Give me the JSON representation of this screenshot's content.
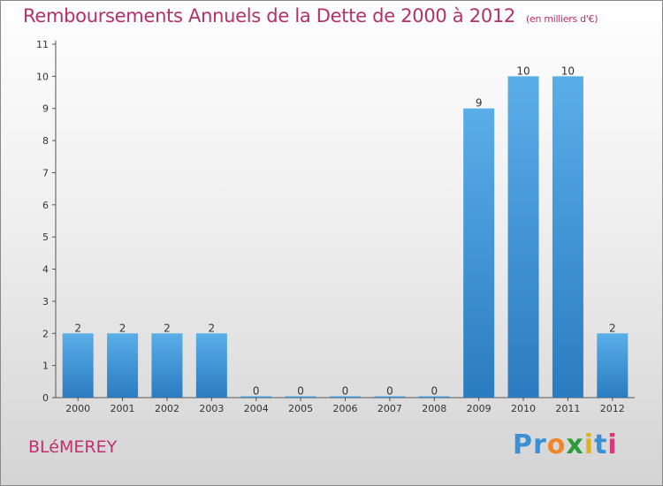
{
  "chart_data": {
    "type": "bar",
    "title": "Remboursements Annuels de la Dette de 2000 à 2012",
    "subtitle": "(en milliers d'€)",
    "categories": [
      "2000",
      "2001",
      "2002",
      "2003",
      "2004",
      "2005",
      "2006",
      "2007",
      "2008",
      "2009",
      "2010",
      "2011",
      "2012"
    ],
    "values": [
      2,
      2,
      2,
      2,
      0,
      0,
      0,
      0,
      0,
      9,
      10,
      10,
      2
    ],
    "ylim": [
      0,
      11
    ],
    "yticks": [
      0,
      1,
      2,
      3,
      4,
      5,
      6,
      7,
      8,
      9,
      10,
      11
    ],
    "xlabel": "",
    "ylabel": "",
    "bar_color": "#3f94d6",
    "grid": false
  },
  "commune": "BLéMEREY",
  "logo": {
    "letters": [
      "P",
      "r",
      "o",
      "x",
      "i",
      "t",
      "i"
    ],
    "colors": [
      "#3a8fd6",
      "#3a8fd6",
      "#f0852a",
      "#2a9b3a",
      "#e0b020",
      "#3a8fd6",
      "#d63a7a"
    ]
  }
}
